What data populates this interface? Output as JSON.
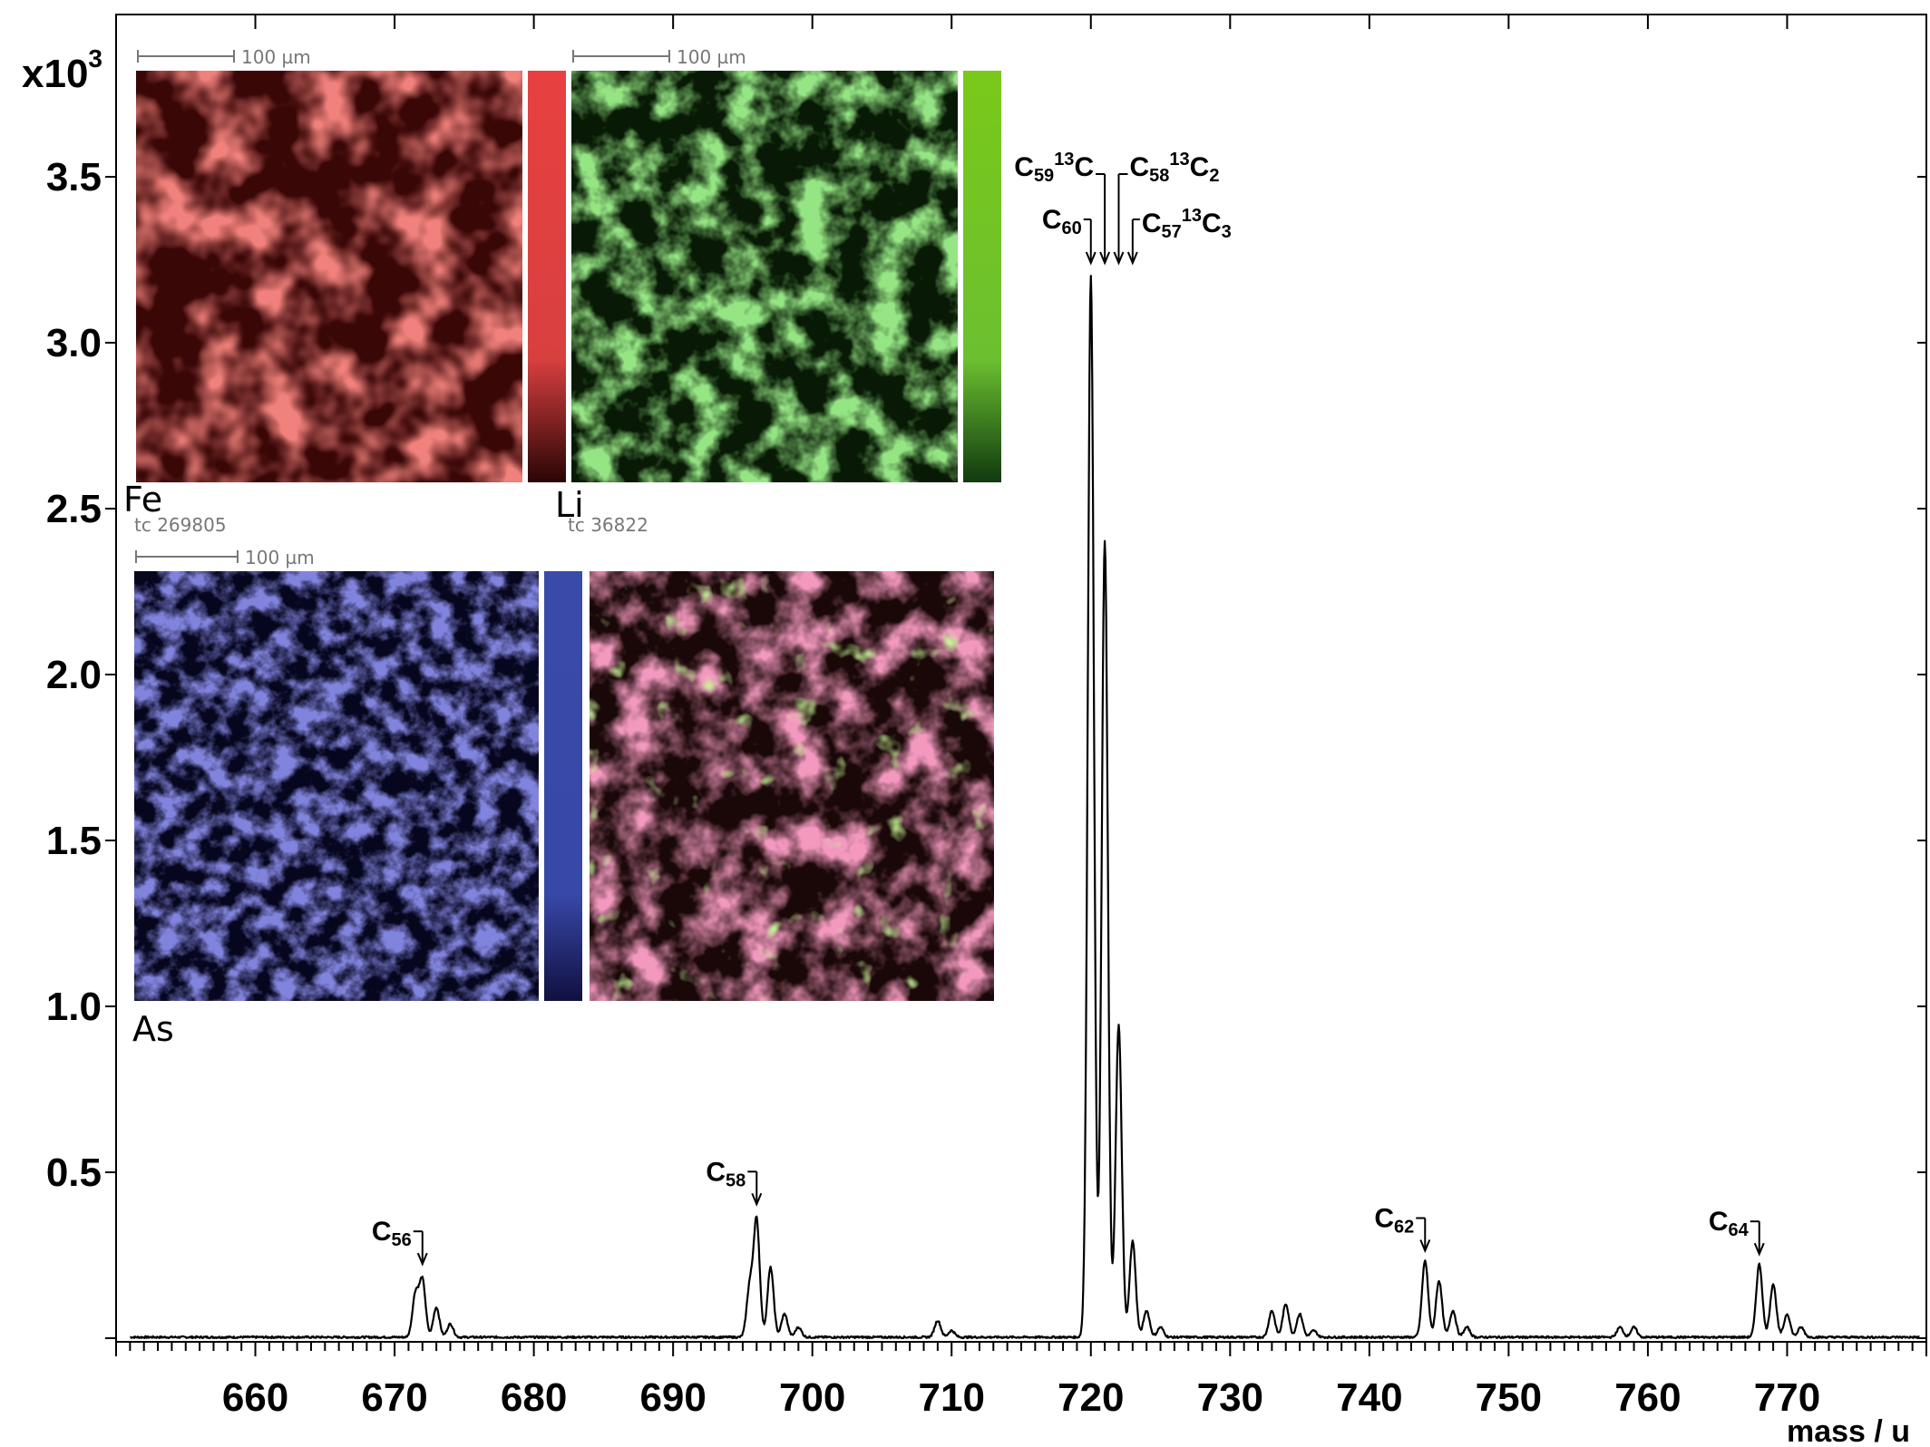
{
  "chart_data": {
    "type": "line",
    "xlabel": "mass / u",
    "ylabel": "",
    "y_multiplier": "x10",
    "y_multiplier_exp": "3",
    "xlim": [
      650,
      780
    ],
    "ylim": [
      0,
      4.0
    ],
    "x_ticks": [
      "660",
      "670",
      "680",
      "690",
      "700",
      "710",
      "720",
      "730",
      "740",
      "750",
      "760",
      "770"
    ],
    "y_ticks": [
      "0.5",
      "1.0",
      "1.5",
      "2.0",
      "2.5",
      "3.0",
      "3.5"
    ],
    "peaks": [
      {
        "x": 671.5,
        "y": 0.13
      },
      {
        "x": 672.0,
        "y": 0.17
      },
      {
        "x": 673.0,
        "y": 0.09
      },
      {
        "x": 674.0,
        "y": 0.04
      },
      {
        "x": 695.5,
        "y": 0.15
      },
      {
        "x": 696.0,
        "y": 0.35
      },
      {
        "x": 697.0,
        "y": 0.21
      },
      {
        "x": 698.0,
        "y": 0.07
      },
      {
        "x": 699.0,
        "y": 0.03
      },
      {
        "x": 709.0,
        "y": 0.05
      },
      {
        "x": 710.0,
        "y": 0.02
      },
      {
        "x": 720.0,
        "y": 3.2
      },
      {
        "x": 721.0,
        "y": 2.4
      },
      {
        "x": 722.0,
        "y": 0.94
      },
      {
        "x": 723.0,
        "y": 0.29
      },
      {
        "x": 724.0,
        "y": 0.08
      },
      {
        "x": 725.0,
        "y": 0.03
      },
      {
        "x": 733.0,
        "y": 0.08
      },
      {
        "x": 734.0,
        "y": 0.1
      },
      {
        "x": 735.0,
        "y": 0.07
      },
      {
        "x": 736.0,
        "y": 0.02
      },
      {
        "x": 744.0,
        "y": 0.23
      },
      {
        "x": 745.0,
        "y": 0.17
      },
      {
        "x": 746.0,
        "y": 0.08
      },
      {
        "x": 747.0,
        "y": 0.03
      },
      {
        "x": 758.0,
        "y": 0.03
      },
      {
        "x": 759.0,
        "y": 0.03
      },
      {
        "x": 768.0,
        "y": 0.22
      },
      {
        "x": 769.0,
        "y": 0.16
      },
      {
        "x": 770.0,
        "y": 0.07
      },
      {
        "x": 771.0,
        "y": 0.03
      }
    ],
    "annotations": [
      {
        "base": "C",
        "sub": "56",
        "x": 672.0,
        "y": 0.24
      },
      {
        "base": "C",
        "sub": "58",
        "x": 696.0,
        "y": 0.42
      },
      {
        "base": "C",
        "sub": "62",
        "x": 744.0,
        "y": 0.28
      },
      {
        "base": "C",
        "sub": "64",
        "x": 768.0,
        "y": 0.27
      }
    ],
    "cluster_labels": [
      {
        "text": [
          "C",
          "59",
          "13",
          "C"
        ],
        "x": 721.0
      },
      {
        "text": [
          "C",
          "58",
          "13",
          "C",
          "2"
        ],
        "x": 722.0
      },
      {
        "text": [
          "C",
          "60"
        ],
        "x": 720.0
      },
      {
        "text": [
          "C",
          "57",
          "13",
          "C",
          "3"
        ],
        "x": 723.0
      }
    ]
  },
  "inset_panels": [
    {
      "element": "Fe",
      "scale_text": "100 µm",
      "tc_text": "",
      "color": "#e03a33",
      "dark": "#3a0707",
      "bar_top": "#e84040",
      "bar_bottom": "#2a0505"
    },
    {
      "element": "Li",
      "scale_text": "100 µm",
      "tc_text": "",
      "color": "#4fc33b",
      "dark": "#081a05",
      "bar_top": "#7ac81a",
      "bar_bottom": "#103a10"
    },
    {
      "element": "As",
      "scale_text": "100 µm",
      "tc_text": "tc 269805",
      "color": "#3536b4",
      "dark": "#06061e",
      "bar_top": "#3a4aa8",
      "bar_bottom": "#101040"
    },
    {
      "element": "",
      "scale_text": "",
      "tc_text": "tc 36822",
      "color": "#e03a70",
      "dark": "#1a0808",
      "bar_top": "",
      "bar_bottom": ""
    }
  ]
}
